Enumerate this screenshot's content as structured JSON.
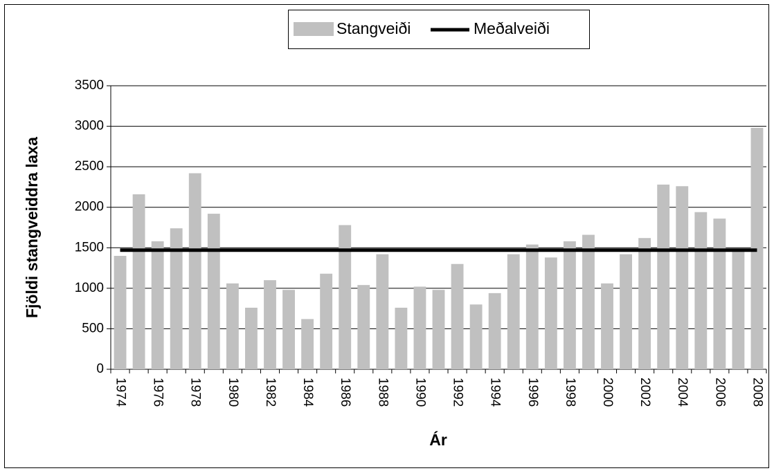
{
  "chart_data": {
    "type": "bar",
    "categories": [
      "1974",
      null,
      "1976",
      null,
      "1978",
      null,
      "1980",
      null,
      "1982",
      null,
      "1984",
      null,
      "1986",
      null,
      "1988",
      null,
      "1990",
      null,
      "1992",
      null,
      "1994",
      null,
      "1996",
      null,
      "1998",
      null,
      "2000",
      null,
      "2002",
      null,
      "2004",
      null,
      "2006",
      null,
      "2008"
    ],
    "series": [
      {
        "name": "Stangveiði",
        "type": "bar",
        "color": "#c0c0c0",
        "values": [
          1400,
          2160,
          1580,
          1740,
          2420,
          1920,
          1060,
          760,
          1100,
          980,
          620,
          1180,
          1780,
          1040,
          1420,
          760,
          1020,
          980,
          1300,
          800,
          940,
          1420,
          1540,
          1380,
          1580,
          1660,
          1060,
          1420,
          1620,
          2280,
          2260,
          1940,
          1860,
          1480,
          2980
        ]
      },
      {
        "name": "Meðalveiði",
        "type": "line",
        "color": "#000000",
        "values": [
          1470,
          1470,
          1470,
          1470,
          1470,
          1470,
          1470,
          1470,
          1470,
          1470,
          1470,
          1470,
          1470,
          1470,
          1470,
          1470,
          1470,
          1470,
          1470,
          1470,
          1470,
          1470,
          1470,
          1470,
          1470,
          1470,
          1470,
          1470,
          1470,
          1470,
          1470,
          1470,
          1470,
          1470,
          1470
        ]
      }
    ],
    "x_label": "Ár",
    "y_label": "Fjöldi stangveiddra laxa",
    "ylim": [
      0,
      3500
    ],
    "yticks": [
      0,
      500,
      1000,
      1500,
      2000,
      2500,
      3000,
      3500
    ],
    "grid": true,
    "legend": "top"
  }
}
